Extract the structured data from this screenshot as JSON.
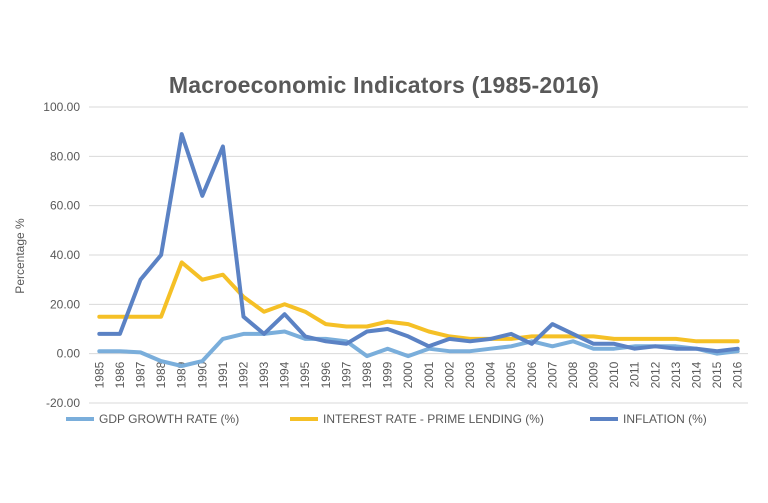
{
  "chart_data": {
    "type": "line",
    "title": "Macroeconomic Indicators (1985-2016)",
    "ylabel": "Percentage %",
    "xlabel": "",
    "ylim": [
      -20,
      100
    ],
    "y_ticks": [
      "-20.00",
      "0.00",
      "20.00",
      "40.00",
      "60.00",
      "80.00",
      "100.00"
    ],
    "y_tick_values": [
      -20,
      0,
      20,
      40,
      60,
      80,
      100
    ],
    "grid": true,
    "legend_position": "bottom",
    "categories": [
      "1985",
      "1986",
      "1987",
      "1988",
      "1989",
      "1990",
      "1991",
      "1992",
      "1993",
      "1994",
      "1995",
      "1996",
      "1997",
      "1998",
      "1999",
      "2000",
      "2001",
      "2002",
      "2003",
      "2004",
      "2005",
      "2006",
      "2007",
      "2008",
      "2009",
      "2010",
      "2011",
      "2012",
      "2013",
      "2014",
      "2015",
      "2016"
    ],
    "series": [
      {
        "name": "GDP GROWTH RATE (%)",
        "color": "#7aaedb",
        "values": [
          1,
          1,
          0.5,
          -3,
          -5,
          -3,
          6,
          8,
          8,
          9,
          6,
          6,
          5,
          -1,
          2,
          -1,
          2,
          1,
          1,
          2,
          3,
          5,
          3,
          5,
          2,
          2,
          3,
          3,
          3,
          2,
          0,
          1
        ]
      },
      {
        "name": "INTEREST RATE - PRIME LENDING (%)",
        "color": "#f5c026",
        "values": [
          15,
          15,
          15,
          15,
          37,
          30,
          32,
          23,
          17,
          20,
          17,
          12,
          11,
          11,
          13,
          12,
          9,
          7,
          6,
          6,
          6,
          7,
          7,
          7,
          7,
          6,
          6,
          6,
          6,
          5,
          5,
          5
        ]
      },
      {
        "name": "INFLATION (%)",
        "color": "#5b82c4",
        "values": [
          8,
          8,
          30,
          40,
          89,
          64,
          84,
          15,
          8,
          16,
          7,
          5,
          4,
          9,
          10,
          7,
          3,
          6,
          5,
          6,
          8,
          4,
          12,
          8,
          4,
          4,
          2,
          3,
          2,
          2,
          1,
          2
        ]
      }
    ]
  }
}
